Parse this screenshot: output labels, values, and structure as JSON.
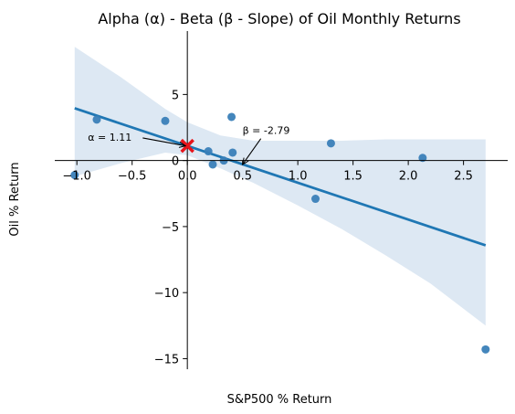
{
  "chart_data": {
    "type": "scatter",
    "title": "Alpha (α) - Beta (β - Slope) of Oil Monthly Returns",
    "xlabel": "S&P500 % Return",
    "ylabel": "Oil % Return",
    "xlim": [
      -1.2,
      2.9
    ],
    "ylim": [
      -15.8,
      9.8
    ],
    "xticks": [
      -1.0,
      -0.5,
      0.0,
      0.5,
      1.0,
      1.5,
      2.0,
      2.5
    ],
    "xtick_labels": [
      "−1.0",
      "−0.5",
      "0.0",
      "0.5",
      "1.0",
      "1.5",
      "2.0",
      "2.5"
    ],
    "yticks": [
      5,
      0,
      -5,
      -10,
      -15
    ],
    "ytick_labels": [
      "5",
      "0",
      "−5",
      "−10",
      "−15"
    ],
    "grid": false,
    "colors": {
      "points": "#3a7fb8",
      "line": "#1f77b4",
      "band": "#dde8f3",
      "marker": "#e8141a"
    },
    "points": [
      {
        "x": -1.02,
        "y": -1.1
      },
      {
        "x": -0.82,
        "y": 3.1
      },
      {
        "x": -0.2,
        "y": 3.0
      },
      {
        "x": 0.19,
        "y": 0.7
      },
      {
        "x": 0.23,
        "y": -0.3
      },
      {
        "x": 0.33,
        "y": 0.0
      },
      {
        "x": 0.4,
        "y": 3.3
      },
      {
        "x": 0.41,
        "y": 0.6
      },
      {
        "x": 1.16,
        "y": -2.9
      },
      {
        "x": 1.3,
        "y": 1.3
      },
      {
        "x": 2.13,
        "y": 0.2
      },
      {
        "x": 2.7,
        "y": -14.3
      }
    ],
    "regression": {
      "intercept": 1.11,
      "slope": -2.79,
      "x_range": [
        -1.02,
        2.7
      ]
    },
    "confidence_band": {
      "x": [
        -1.02,
        -0.6,
        -0.2,
        0.0,
        0.3,
        0.6,
        1.0,
        1.4,
        1.8,
        2.2,
        2.7
      ],
      "upper": [
        8.6,
        6.3,
        3.9,
        2.9,
        1.9,
        1.5,
        1.5,
        1.5,
        1.6,
        1.6,
        1.6
      ],
      "lower": [
        -1.2,
        -0.2,
        0.6,
        0.4,
        -0.6,
        -1.7,
        -3.4,
        -5.2,
        -7.2,
        -9.3,
        -12.5
      ]
    },
    "alpha_marker": {
      "x": 0.0,
      "y": 1.11
    },
    "annotations": [
      {
        "text": "α =  1.11",
        "x": -0.9,
        "y": 1.5,
        "arrow_to": [
          0.0,
          1.11
        ]
      },
      {
        "text": "β = -2.79",
        "x": 0.5,
        "y": 2.0,
        "arrow_to": [
          0.5,
          -0.3
        ]
      }
    ]
  }
}
